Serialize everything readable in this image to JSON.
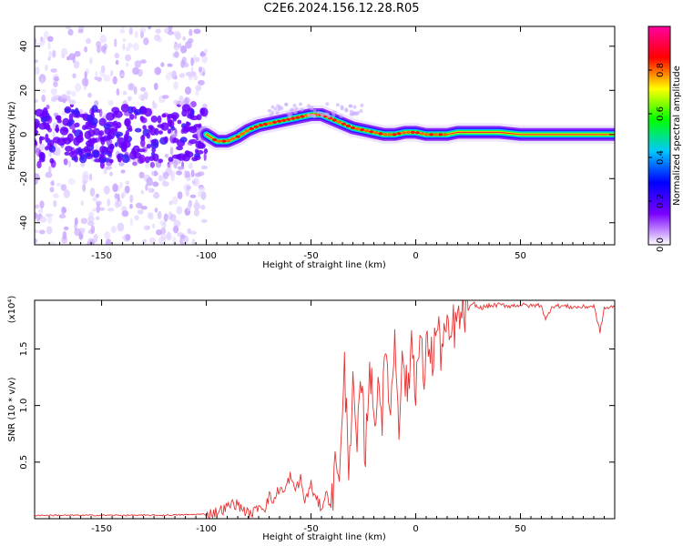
{
  "title": "C2E6.2024.156.12.28.R05",
  "chart_data": [
    {
      "type": "heatmap",
      "xlabel": "Height of straight line (km)",
      "ylabel": "Frequency (Hz)",
      "xlim": [
        -182,
        95
      ],
      "ylim": [
        -50,
        49
      ],
      "xticks": [
        "-150",
        "-100",
        "-50",
        "0",
        "50"
      ],
      "xtick_values": [
        -150,
        -100,
        -50,
        0,
        50
      ],
      "yticks": [
        "-40",
        "-20",
        "0",
        "20",
        "40"
      ],
      "ytick_values": [
        -40,
        -20,
        0,
        20,
        40
      ],
      "ridge": {
        "x": [
          -182,
          -100,
          -95,
          -90,
          -85,
          -80,
          -75,
          -70,
          -65,
          -60,
          -55,
          -50,
          -45,
          -40,
          -35,
          -30,
          -25,
          -20,
          -15,
          -10,
          -5,
          0,
          5,
          10,
          15,
          20,
          30,
          40,
          50,
          60,
          70,
          80,
          95
        ],
        "y": [
          0,
          0,
          -3,
          -3,
          -1,
          2,
          4,
          5,
          6,
          7,
          8,
          9,
          9,
          7,
          5,
          3,
          2,
          1,
          0,
          0,
          1,
          1,
          0,
          0,
          0,
          1,
          1,
          1,
          0,
          0,
          0,
          0,
          0
        ]
      },
      "colorbar": {
        "label": "Normalized spectral amplitude",
        "range": [
          0.0,
          1.0
        ],
        "ticks": [
          "0.0",
          "0.2",
          "0.4",
          "0.6",
          "0.8"
        ],
        "tick_values": [
          0.0,
          0.2,
          0.4,
          0.6,
          0.8
        ],
        "colors": [
          "#ffffff",
          "#7a00ff",
          "#0000ff",
          "#00c8ff",
          "#00ff00",
          "#ffff00",
          "#ff0000",
          "#ff00a0"
        ]
      }
    },
    {
      "type": "line",
      "xlabel": "Height of straight line (km)",
      "ylabel": "SNR (10 * v/v)",
      "scale_label": "(x10⁴)",
      "xlim": [
        -182,
        95
      ],
      "ylim": [
        0,
        1.93
      ],
      "xticks": [
        "-150",
        "-100",
        "-50",
        "0",
        "50"
      ],
      "xtick_values": [
        -150,
        -100,
        -50,
        0,
        50
      ],
      "yticks": [
        "0.5",
        "1.0",
        "1.5"
      ],
      "ytick_values": [
        0.5,
        1.0,
        1.5
      ],
      "color": "#e83232",
      "series": [
        {
          "x": [
            -182,
            -160,
            -140,
            -120,
            -100,
            -95,
            -90,
            -87,
            -85,
            -82,
            -80,
            -77,
            -75,
            -72,
            -70,
            -68,
            -65,
            -63,
            -60,
            -58,
            -55,
            -53,
            -50,
            -48,
            -45,
            -43,
            -40,
            -38,
            -36,
            -34,
            -32,
            -30,
            -28,
            -26,
            -24,
            -22,
            -20,
            -18,
            -16,
            -14,
            -12,
            -10,
            -8,
            -6,
            -4,
            -2,
            0,
            2,
            4,
            6,
            8,
            10,
            12,
            14,
            16,
            18,
            20,
            22,
            25,
            28,
            30,
            35,
            40,
            45,
            50,
            55,
            60,
            62,
            65,
            70,
            75,
            80,
            85,
            88,
            90,
            95
          ],
          "y": [
            0.03,
            0.03,
            0.03,
            0.03,
            0.04,
            0.06,
            0.1,
            0.14,
            0.12,
            0.08,
            0.04,
            0.06,
            0.12,
            0.1,
            0.2,
            0.15,
            0.28,
            0.22,
            0.38,
            0.25,
            0.35,
            0.15,
            0.3,
            0.18,
            0.1,
            0.22,
            0.12,
            0.55,
            0.45,
            1.3,
            0.55,
            1.1,
            0.6,
            1.2,
            0.55,
            1.45,
            0.8,
            1.25,
            0.95,
            1.5,
            0.9,
            1.65,
            0.9,
            1.45,
            1.05,
            1.6,
            1.2,
            1.55,
            1.25,
            1.6,
            1.4,
            1.7,
            1.5,
            1.65,
            1.55,
            1.7,
            1.72,
            1.8,
            1.85,
            1.9,
            1.86,
            1.88,
            1.89,
            1.88,
            1.89,
            1.88,
            1.89,
            1.75,
            1.88,
            1.88,
            1.87,
            1.87,
            1.88,
            1.65,
            1.86,
            1.87
          ]
        }
      ]
    }
  ]
}
